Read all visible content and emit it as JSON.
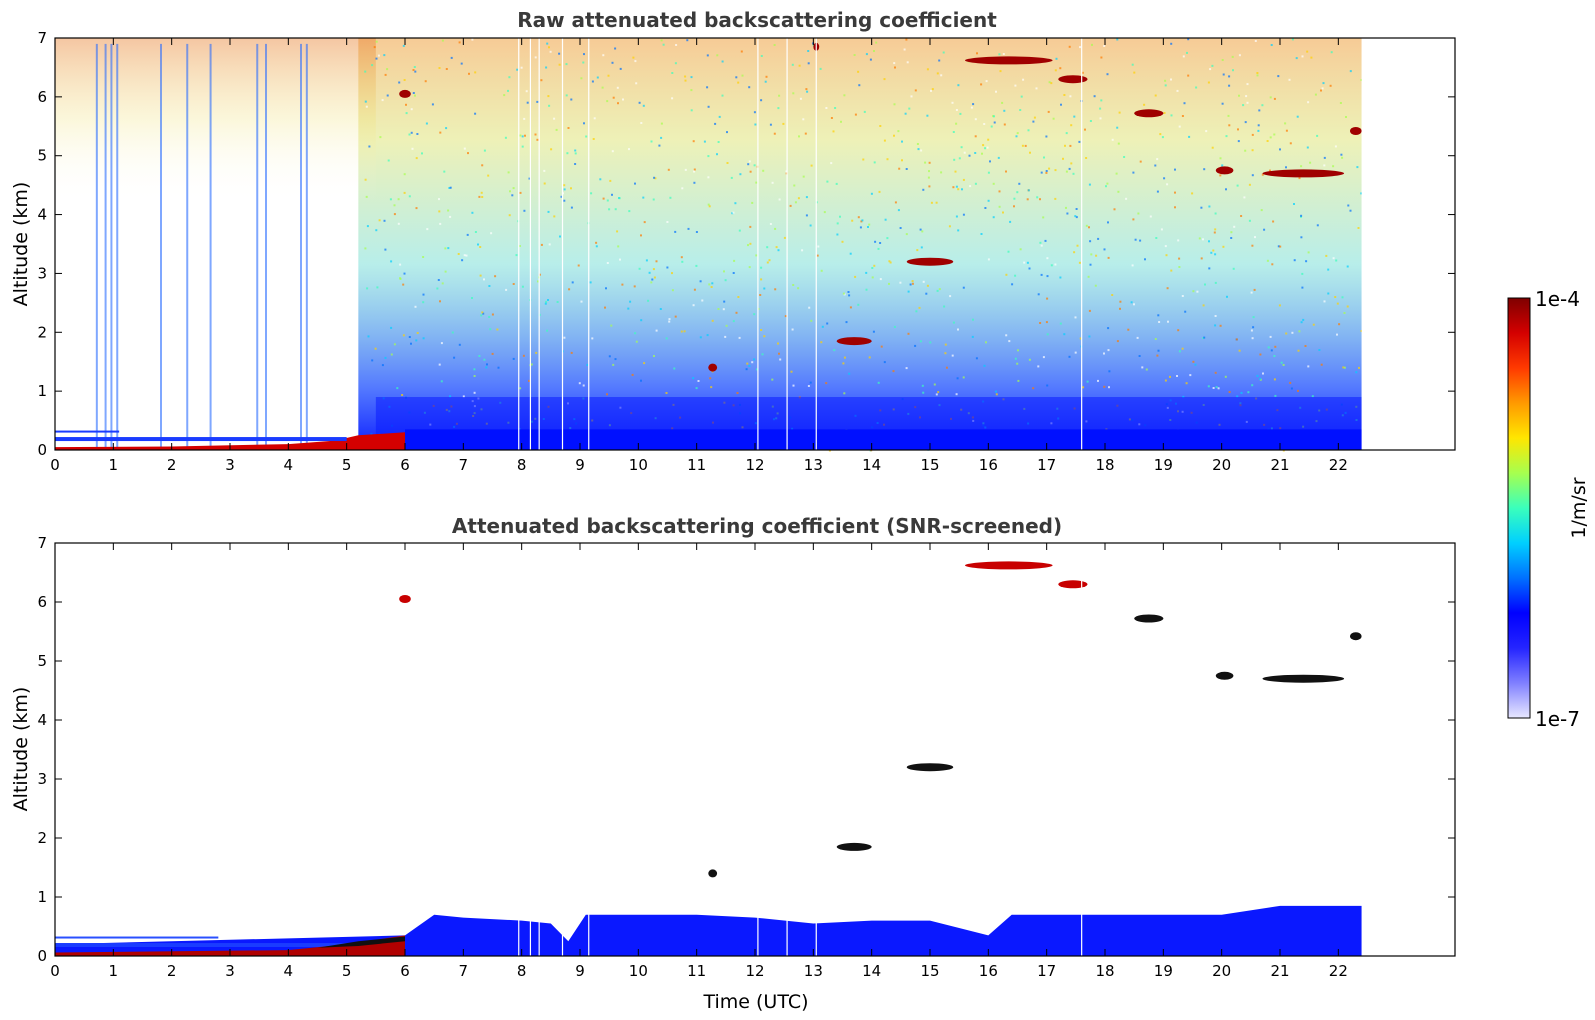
{
  "chart_data": [
    {
      "type": "heatmap",
      "title": "Raw attenuated backscattering coefficient",
      "xlabel": "",
      "ylabel": "Altitude (km)",
      "xlim": [
        0,
        24
      ],
      "ylim": [
        0,
        7
      ],
      "data_x_extent": [
        0,
        22.4
      ],
      "xticks": [
        0,
        1,
        2,
        3,
        4,
        5,
        6,
        7,
        8,
        9,
        10,
        11,
        12,
        13,
        14,
        15,
        16,
        17,
        18,
        19,
        20,
        21,
        22
      ],
      "yticks": [
        0,
        1,
        2,
        3,
        4,
        5,
        6,
        7
      ],
      "surface_layer": [
        {
          "t": 0,
          "alt": 0.05
        },
        {
          "t": 2,
          "alt": 0.06
        },
        {
          "t": 4,
          "alt": 0.1
        },
        {
          "t": 4.8,
          "alt": 0.16
        },
        {
          "t": 5.2,
          "alt": 0.25
        },
        {
          "t": 6,
          "alt": 0.3
        }
      ],
      "clouds": [
        {
          "t": 5.9,
          "alt": 6.05,
          "dt": 0.2
        },
        {
          "t": 11.2,
          "alt": 1.4,
          "dt": 0.15
        },
        {
          "t": 13.0,
          "alt": 6.85,
          "dt": 0.1
        },
        {
          "t": 13.4,
          "alt": 1.85,
          "dt": 0.6
        },
        {
          "t": 14.6,
          "alt": 3.2,
          "dt": 0.8
        },
        {
          "t": 15.6,
          "alt": 6.62,
          "dt": 1.5
        },
        {
          "t": 17.2,
          "alt": 6.3,
          "dt": 0.5
        },
        {
          "t": 18.5,
          "alt": 5.72,
          "dt": 0.5
        },
        {
          "t": 19.9,
          "alt": 4.75,
          "dt": 0.3
        },
        {
          "t": 20.7,
          "alt": 4.7,
          "dt": 1.4
        },
        {
          "t": 22.2,
          "alt": 5.42,
          "dt": 0.2
        }
      ]
    },
    {
      "type": "heatmap",
      "title": "Attenuated backscattering coefficient (SNR-screened)",
      "xlabel": "Time (UTC)",
      "ylabel": "Altitude (km)",
      "xlim": [
        0,
        24
      ],
      "ylim": [
        0,
        7
      ],
      "data_x_extent": [
        0,
        22.4
      ],
      "xticks": [
        0,
        1,
        2,
        3,
        4,
        5,
        6,
        7,
        8,
        9,
        10,
        11,
        12,
        13,
        14,
        15,
        16,
        17,
        18,
        19,
        20,
        21,
        22
      ],
      "yticks": [
        0,
        1,
        2,
        3,
        4,
        5,
        6,
        7
      ],
      "boundary_layer_top": [
        {
          "t": 0,
          "alt": 0.2
        },
        {
          "t": 6,
          "alt": 0.35
        },
        {
          "t": 6.5,
          "alt": 0.7
        },
        {
          "t": 7,
          "alt": 0.65
        },
        {
          "t": 8,
          "alt": 0.6
        },
        {
          "t": 8.5,
          "alt": 0.55
        },
        {
          "t": 8.8,
          "alt": 0.25
        },
        {
          "t": 9.1,
          "alt": 0.7
        },
        {
          "t": 11,
          "alt": 0.7
        },
        {
          "t": 12,
          "alt": 0.65
        },
        {
          "t": 13,
          "alt": 0.55
        },
        {
          "t": 14,
          "alt": 0.6
        },
        {
          "t": 15,
          "alt": 0.6
        },
        {
          "t": 16,
          "alt": 0.35
        },
        {
          "t": 16.4,
          "alt": 0.7
        },
        {
          "t": 18,
          "alt": 0.7
        },
        {
          "t": 20,
          "alt": 0.7
        },
        {
          "t": 21,
          "alt": 0.85
        },
        {
          "t": 22.4,
          "alt": 0.85
        }
      ],
      "clouds": [
        {
          "t": 5.9,
          "alt": 6.05,
          "dt": 0.2
        },
        {
          "t": 11.2,
          "alt": 1.4,
          "dt": 0.15
        },
        {
          "t": 13.4,
          "alt": 1.85,
          "dt": 0.6
        },
        {
          "t": 14.6,
          "alt": 3.2,
          "dt": 0.8
        },
        {
          "t": 15.6,
          "alt": 6.62,
          "dt": 1.5
        },
        {
          "t": 17.2,
          "alt": 6.3,
          "dt": 0.5
        },
        {
          "t": 18.5,
          "alt": 5.72,
          "dt": 0.5
        },
        {
          "t": 19.9,
          "alt": 4.75,
          "dt": 0.3
        },
        {
          "t": 20.7,
          "alt": 4.7,
          "dt": 1.4
        },
        {
          "t": 22.2,
          "alt": 5.42,
          "dt": 0.2
        }
      ]
    }
  ],
  "colorbar": {
    "label": "1/m/sr",
    "max_label": "1e-4",
    "min_label": "1e-7",
    "colors": [
      "#7f0000",
      "#d40000",
      "#ff3a00",
      "#ff9a00",
      "#ffe600",
      "#a6ff4f",
      "#3affbc",
      "#00d0ff",
      "#0070ff",
      "#0000ff",
      "#2424ff",
      "#8080ff",
      "#e8e8ff"
    ]
  }
}
